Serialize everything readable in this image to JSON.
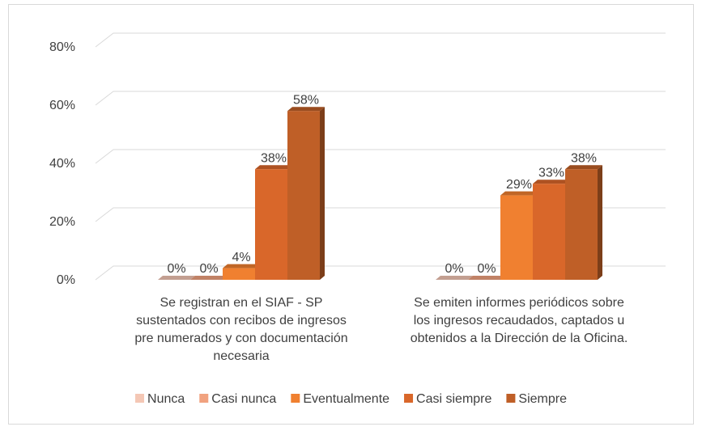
{
  "chart_data": {
    "type": "bar3d",
    "categories": [
      "Se registran en el SIAF - SP sustentados con recibos de ingresos pre numerados y con documentación necesaria",
      "Se emiten informes periódicos sobre los ingresos recaudados, captados u obtenidos a la Dirección de la Oficina."
    ],
    "series": [
      {
        "name": "Nunca",
        "color": "#f4c7b5",
        "values": [
          0,
          0
        ],
        "value_labels": [
          "0%",
          "0%"
        ]
      },
      {
        "name": "Casi nunca",
        "color": "#f1a27f",
        "values": [
          0,
          0
        ],
        "value_labels": [
          "0%",
          "0%"
        ]
      },
      {
        "name": "Eventualmente",
        "color": "#f08030",
        "values": [
          4,
          29
        ],
        "value_labels": [
          "4%",
          "29%"
        ]
      },
      {
        "name": "Casi siempre",
        "color": "#d9672a",
        "values": [
          38,
          33
        ],
        "value_labels": [
          "38%",
          "33%"
        ]
      },
      {
        "name": "Siempre",
        "color": "#bf5f27",
        "values": [
          58,
          38
        ],
        "value_labels": [
          "58%",
          "38%"
        ]
      }
    ],
    "ylim": [
      0,
      80
    ],
    "yticks": [
      {
        "value": 0,
        "label": "0%"
      },
      {
        "value": 20,
        "label": "20%"
      },
      {
        "value": 40,
        "label": "40%"
      },
      {
        "value": 60,
        "label": "60%"
      },
      {
        "value": 80,
        "label": "80%"
      }
    ],
    "grid": true,
    "legend": "bottom"
  }
}
